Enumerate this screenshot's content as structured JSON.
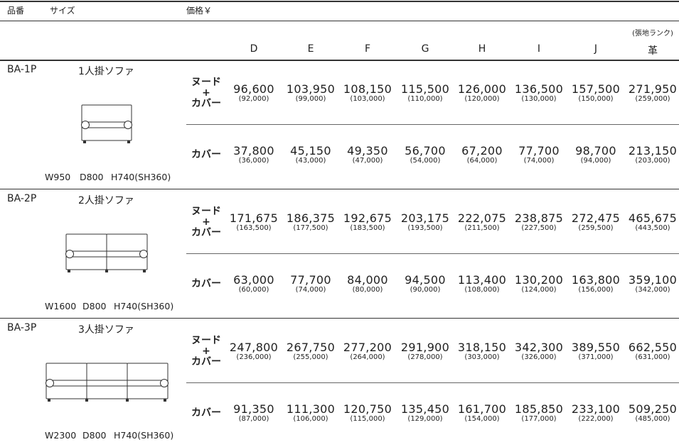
{
  "header": {
    "code": "品番",
    "size": "サイズ",
    "price": "価格￥"
  },
  "rank_note": "(張地ランク)",
  "ranks": [
    "D",
    "E",
    "F",
    "G",
    "H",
    "I",
    "J",
    "革"
  ],
  "products": [
    {
      "code": "BA-1P",
      "name": "1人掛ソファ",
      "size": [
        "W950",
        "D800",
        "H740(SH360)"
      ],
      "rows": [
        {
          "label": [
            "ヌード",
            "+",
            "カバー"
          ],
          "prices": [
            "96,600",
            "103,950",
            "108,150",
            "115,500",
            "126,000",
            "136,500",
            "157,500",
            "271,950"
          ],
          "sub": [
            "(92,000)",
            "(99,000)",
            "(103,000)",
            "(110,000)",
            "(120,000)",
            "(130,000)",
            "(150,000)",
            "(259,000)"
          ]
        },
        {
          "label": [
            "カバー"
          ],
          "prices": [
            "37,800",
            "45,150",
            "49,350",
            "56,700",
            "67,200",
            "77,700",
            "98,700",
            "213,150"
          ],
          "sub": [
            "(36,000)",
            "(43,000)",
            "(47,000)",
            "(54,000)",
            "(64,000)",
            "(74,000)",
            "(94,000)",
            "(203,000)"
          ]
        }
      ]
    },
    {
      "code": "BA-2P",
      "name": "2人掛ソファ",
      "size": [
        "W1600",
        "D800",
        "H740(SH360)"
      ],
      "rows": [
        {
          "label": [
            "ヌード",
            "+",
            "カバー"
          ],
          "prices": [
            "171,675",
            "186,375",
            "192,675",
            "203,175",
            "222,075",
            "238,875",
            "272,475",
            "465,675"
          ],
          "sub": [
            "(163,500)",
            "(177,500)",
            "(183,500)",
            "(193,500)",
            "(211,500)",
            "(227,500)",
            "(259,500)",
            "(443,500)"
          ]
        },
        {
          "label": [
            "カバー"
          ],
          "prices": [
            "63,000",
            "77,700",
            "84,000",
            "94,500",
            "113,400",
            "130,200",
            "163,800",
            "359,100"
          ],
          "sub": [
            "(60,000)",
            "(74,000)",
            "(80,000)",
            "(90,000)",
            "(108,000)",
            "(124,000)",
            "(156,000)",
            "(342,000)"
          ]
        }
      ]
    },
    {
      "code": "BA-3P",
      "name": "3人掛ソファ",
      "size": [
        "W2300",
        "D800",
        "H740(SH360)"
      ],
      "rows": [
        {
          "label": [
            "ヌード",
            "+",
            "カバー"
          ],
          "prices": [
            "247,800",
            "267,750",
            "277,200",
            "291,900",
            "318,150",
            "342,300",
            "389,550",
            "662,550"
          ],
          "sub": [
            "(236,000)",
            "(255,000)",
            "(264,000)",
            "(278,000)",
            "(303,000)",
            "(326,000)",
            "(371,000)",
            "(631,000)"
          ]
        },
        {
          "label": [
            "カバー"
          ],
          "prices": [
            "91,350",
            "111,300",
            "120,750",
            "135,450",
            "161,700",
            "185,850",
            "233,100",
            "509,250"
          ],
          "sub": [
            "(87,000)",
            "(106,000)",
            "(115,000)",
            "(129,000)",
            "(154,000)",
            "(177,000)",
            "(222,000)",
            "(485,000)"
          ]
        }
      ]
    }
  ]
}
